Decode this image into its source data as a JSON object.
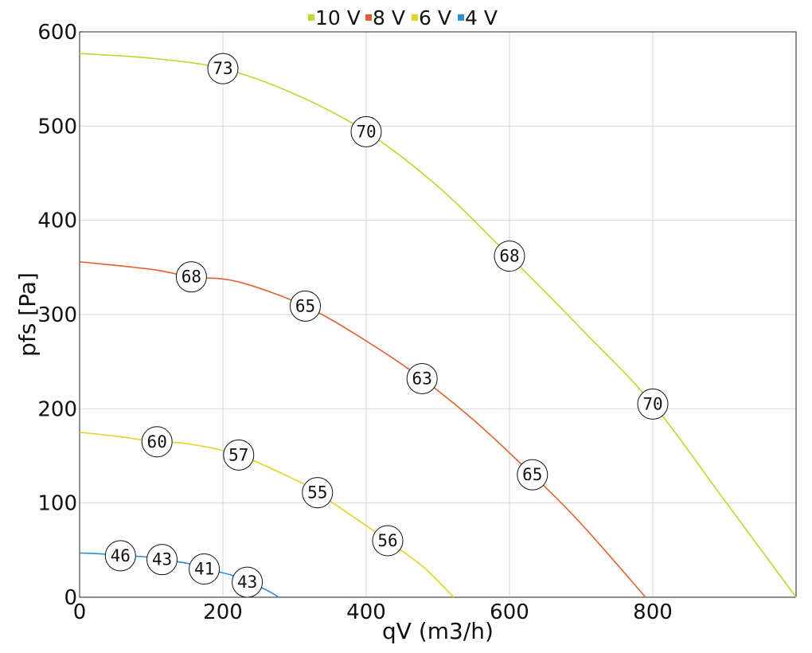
{
  "chart_data": {
    "type": "line",
    "xlabel": "qV (m3/h)",
    "ylabel": "pfs [Pa]",
    "xlim": [
      0,
      1000
    ],
    "ylim": [
      0,
      600
    ],
    "x_ticks": [
      "0",
      "200",
      "400",
      "600",
      "800"
    ],
    "y_ticks": [
      "0",
      "100",
      "200",
      "300",
      "400",
      "500",
      "600"
    ],
    "grid": true,
    "legend_position": "top-center",
    "series": [
      {
        "name": "10 V",
        "color": "#bfd730",
        "x": [
          0,
          100,
          200,
          300,
          400,
          500,
          600,
          700,
          800,
          900,
          1000
        ],
        "y": [
          577,
          572,
          561,
          534,
          494,
          436,
          362,
          285,
          205,
          103,
          0
        ],
        "markers": [
          {
            "x": 200,
            "y": 561,
            "label": "73"
          },
          {
            "x": 400,
            "y": 494,
            "label": "70"
          },
          {
            "x": 600,
            "y": 362,
            "label": "68"
          },
          {
            "x": 800,
            "y": 205,
            "label": "70"
          }
        ]
      },
      {
        "name": "8 V",
        "color": "#e0622e",
        "x": [
          0,
          100,
          156,
          220,
          315,
          400,
          478,
          550,
          632,
          700,
          790
        ],
        "y": [
          356,
          348,
          340,
          335,
          309,
          272,
          232,
          188,
          130,
          78,
          0
        ],
        "markers": [
          {
            "x": 156,
            "y": 340,
            "label": "68"
          },
          {
            "x": 315,
            "y": 309,
            "label": "65"
          },
          {
            "x": 478,
            "y": 232,
            "label": "63"
          },
          {
            "x": 632,
            "y": 130,
            "label": "65"
          }
        ]
      },
      {
        "name": "6 V",
        "color": "#e2d22a",
        "x": [
          0,
          50,
          108,
          150,
          222,
          300,
          332,
          400,
          430,
          480,
          522
        ],
        "y": [
          175,
          171,
          165,
          163,
          151,
          125,
          111,
          76,
          60,
          32,
          0
        ],
        "markers": [
          {
            "x": 108,
            "y": 165,
            "label": "60"
          },
          {
            "x": 222,
            "y": 151,
            "label": "57"
          },
          {
            "x": 332,
            "y": 111,
            "label": "55"
          },
          {
            "x": 430,
            "y": 60,
            "label": "56"
          }
        ]
      },
      {
        "name": "4 V",
        "color": "#2b8fd6",
        "x": [
          0,
          30,
          57,
          90,
          115,
          150,
          174,
          210,
          234,
          260,
          278
        ],
        "y": [
          47,
          46,
          44,
          43,
          40,
          36,
          30,
          24,
          16,
          8,
          0
        ],
        "markers": [
          {
            "x": 57,
            "y": 44,
            "label": "46"
          },
          {
            "x": 115,
            "y": 40,
            "label": "43"
          },
          {
            "x": 174,
            "y": 30,
            "label": "41"
          },
          {
            "x": 234,
            "y": 16,
            "label": "43"
          }
        ]
      }
    ]
  }
}
